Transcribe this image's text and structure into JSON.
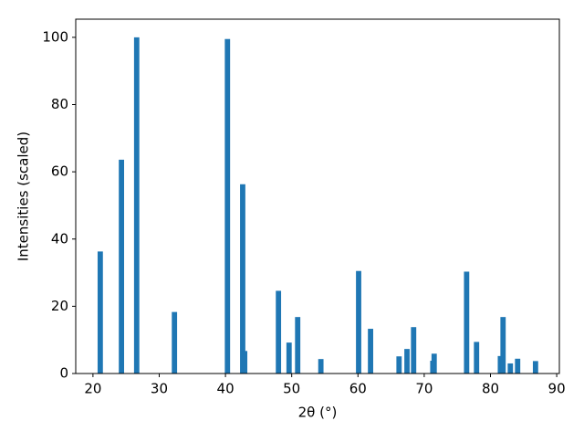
{
  "chart_data": {
    "type": "bar",
    "xlabel": "2θ (°)",
    "ylabel": "Intensities (scaled)",
    "x": [
      21.1,
      24.3,
      26.6,
      32.3,
      40.3,
      42.6,
      42.9,
      48.0,
      49.6,
      50.9,
      54.4,
      60.1,
      61.9,
      66.2,
      67.4,
      68.4,
      71.3,
      71.5,
      76.4,
      77.9,
      81.5,
      81.9,
      83.0,
      84.1,
      86.8
    ],
    "values": [
      36.3,
      63.6,
      100,
      18.3,
      99.5,
      56.3,
      6.7,
      24.6,
      9.2,
      16.8,
      4.3,
      30.5,
      13.3,
      5.1,
      7.3,
      13.8,
      3.8,
      5.9,
      30.3,
      9.4,
      5.2,
      16.8,
      3.0,
      4.4,
      3.7
    ],
    "color": "#1f77b4",
    "xlim": [
      17.4,
      90.4
    ],
    "xticks": [
      20,
      30,
      40,
      50,
      60,
      70,
      80,
      90
    ],
    "ylim": [
      0,
      105.4
    ],
    "yticks": [
      0,
      20,
      40,
      60,
      80,
      100
    ]
  }
}
